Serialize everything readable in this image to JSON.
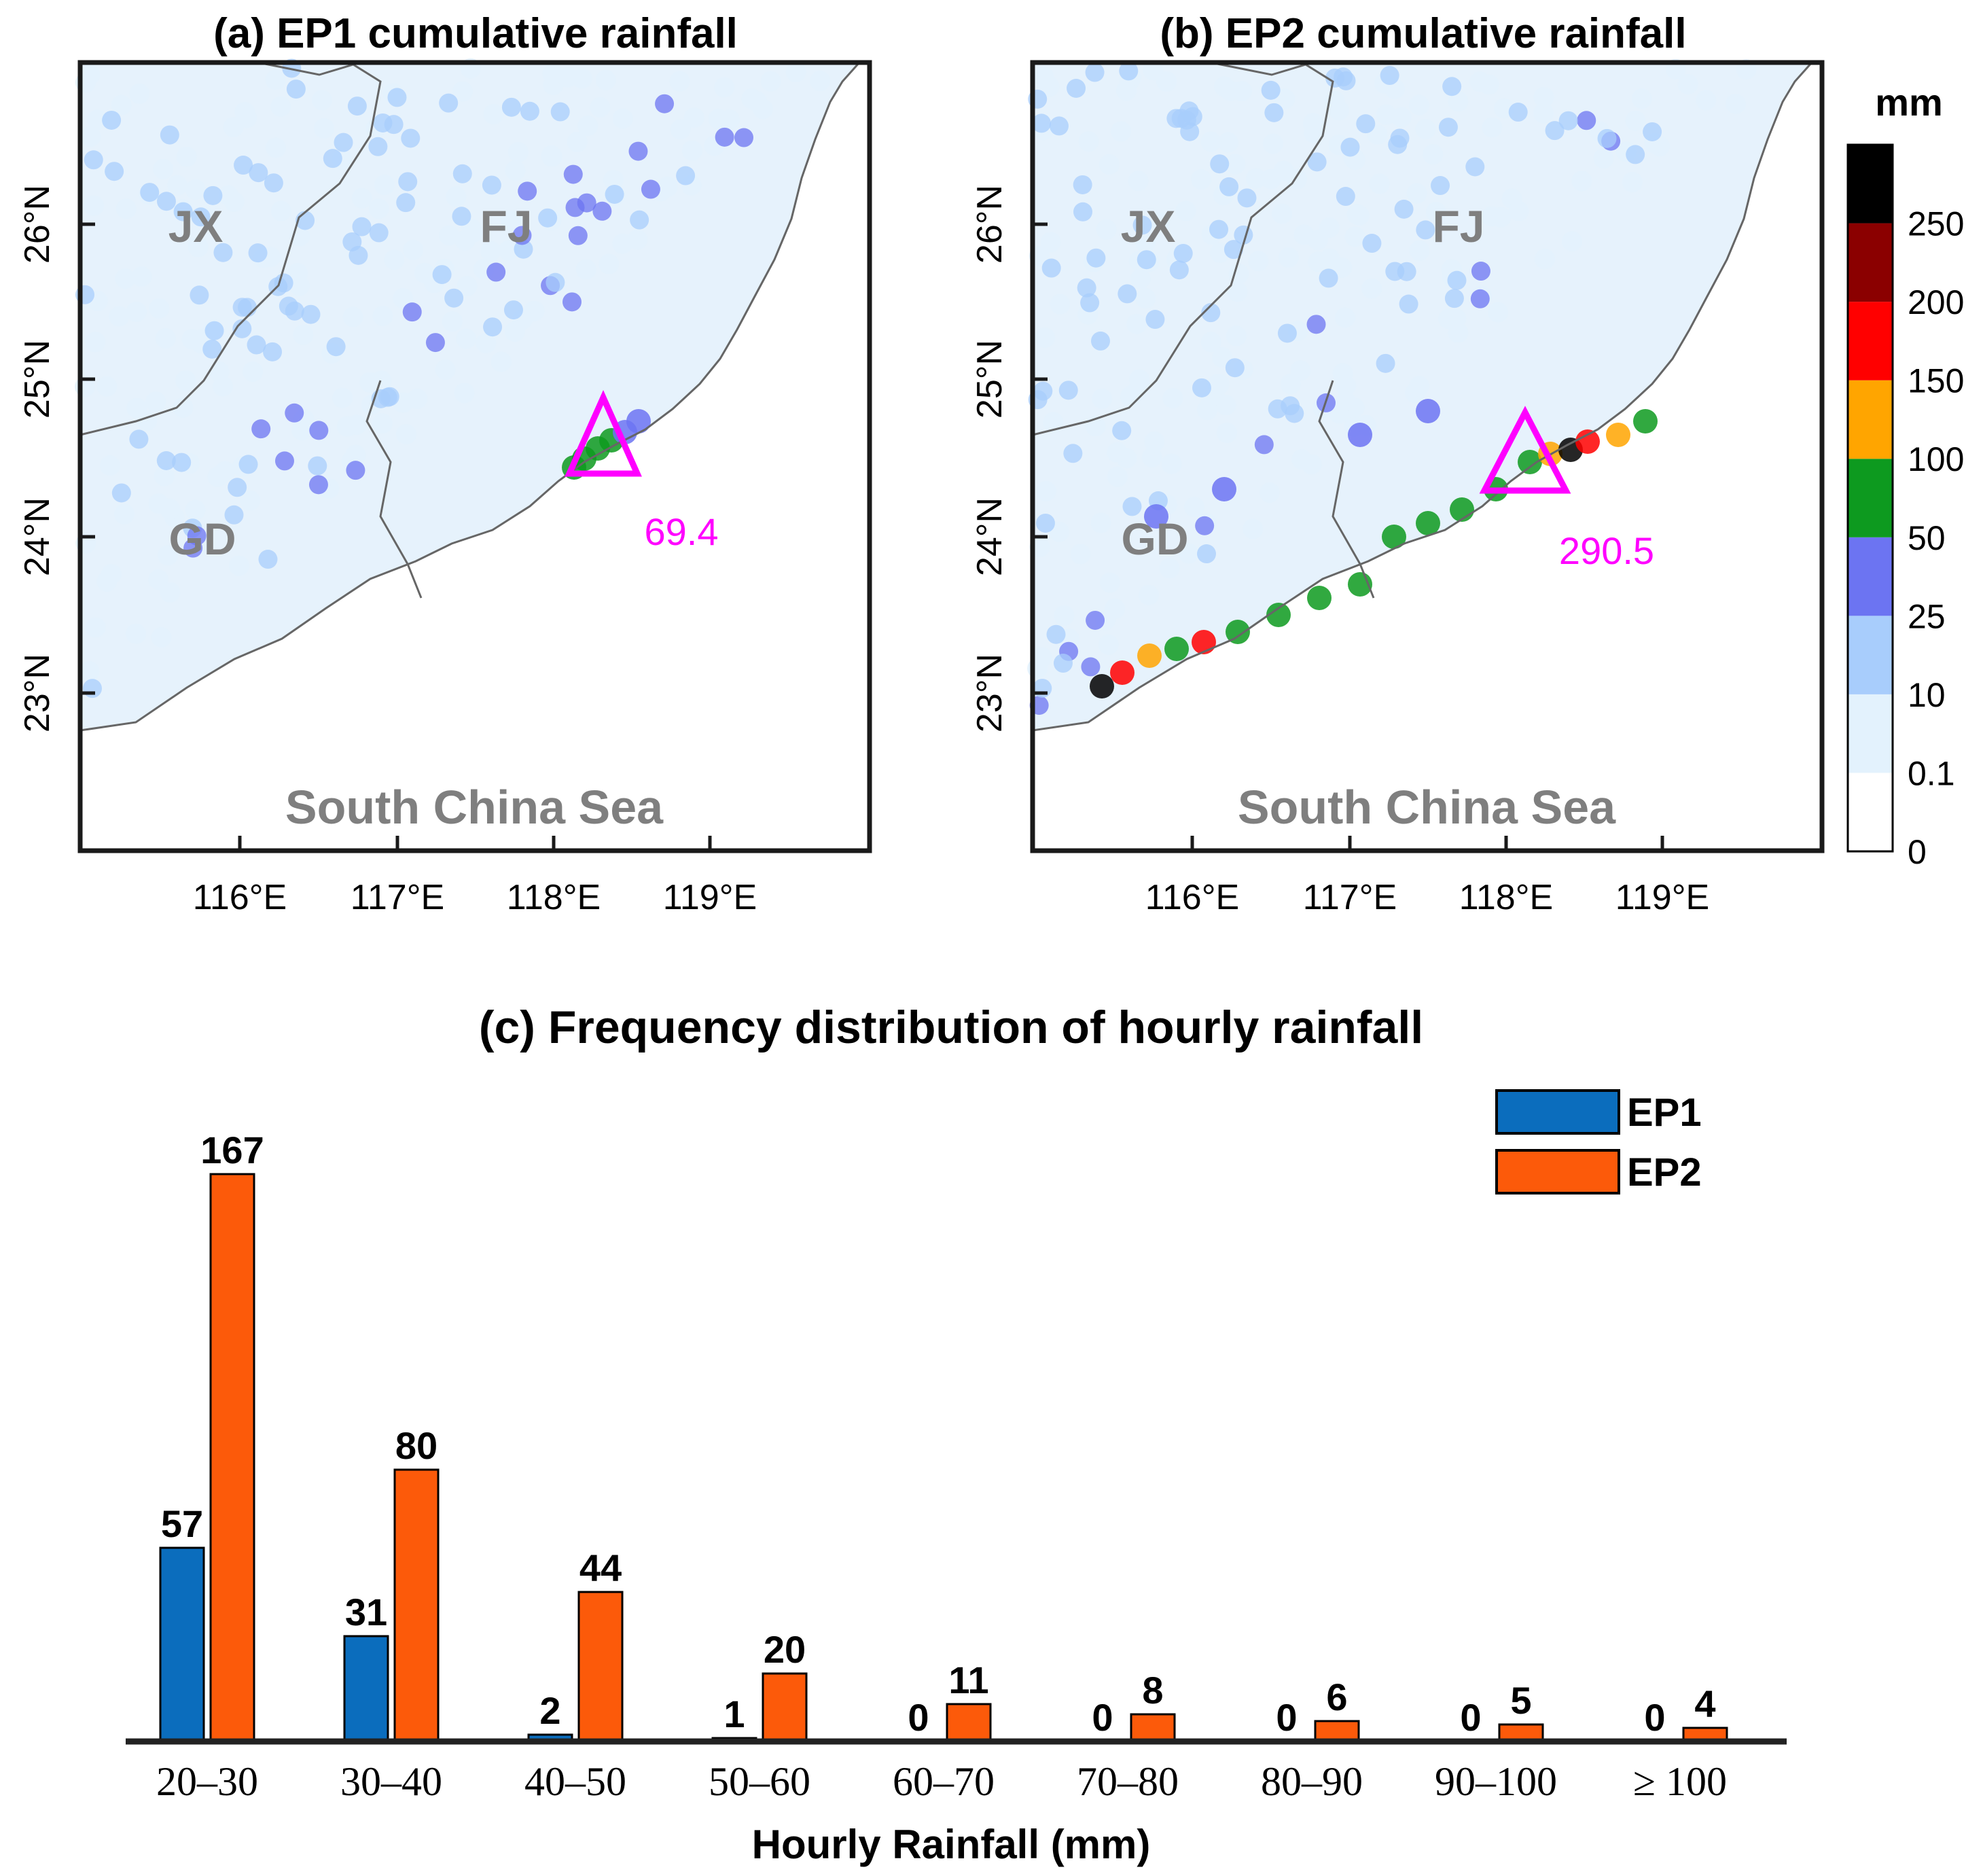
{
  "maps": [
    {
      "title": "(a) EP1 cumulative rainfall",
      "regions": [
        "JX",
        "FJ",
        "GD",
        "South China Sea"
      ],
      "max_label": "69.4",
      "lon_ticks": [
        "116°E",
        "117°E",
        "118°E",
        "119°E"
      ],
      "lat_ticks": [
        "23°N",
        "24°N",
        "25°N",
        "26°N"
      ]
    },
    {
      "title": "(b) EP2 cumulative rainfall",
      "regions": [
        "JX",
        "FJ",
        "GD",
        "South China Sea"
      ],
      "max_label": "290.5",
      "lon_ticks": [
        "116°E",
        "117°E",
        "118°E",
        "119°E"
      ],
      "lat_ticks": [
        "23°N",
        "24°N",
        "25°N",
        "26°N"
      ]
    }
  ],
  "colorbar": {
    "unit": "mm",
    "levels": [
      "0",
      "0.1",
      "10",
      "25",
      "50",
      "100",
      "150",
      "200",
      "250"
    ],
    "colors": [
      "#ffffff",
      "#e3f2fd",
      "#a8cdfc",
      "#6c74f2",
      "#0d9a1f",
      "#ffa500",
      "#ff0000",
      "#8b0000",
      "#000000"
    ]
  },
  "chart_data": {
    "type": "bar",
    "title": "(c) Frequency distribution of hourly rainfall",
    "xlabel": "Hourly Rainfall (mm)",
    "ylabel": "",
    "categories": [
      "20–30",
      "30–40",
      "40–50",
      "50–60",
      "60–70",
      "70–80",
      "80–90",
      "90–100",
      "≥ 100"
    ],
    "series": [
      {
        "name": "EP1",
        "color": "#0b6dbd",
        "values": [
          57,
          31,
          2,
          1,
          0,
          0,
          0,
          0,
          0
        ]
      },
      {
        "name": "EP2",
        "color": "#fc5a0a",
        "values": [
          167,
          80,
          44,
          20,
          11,
          8,
          6,
          5,
          4
        ]
      }
    ],
    "ylim": [
      0,
      167
    ],
    "legend": "top-right",
    "grid": false
  }
}
